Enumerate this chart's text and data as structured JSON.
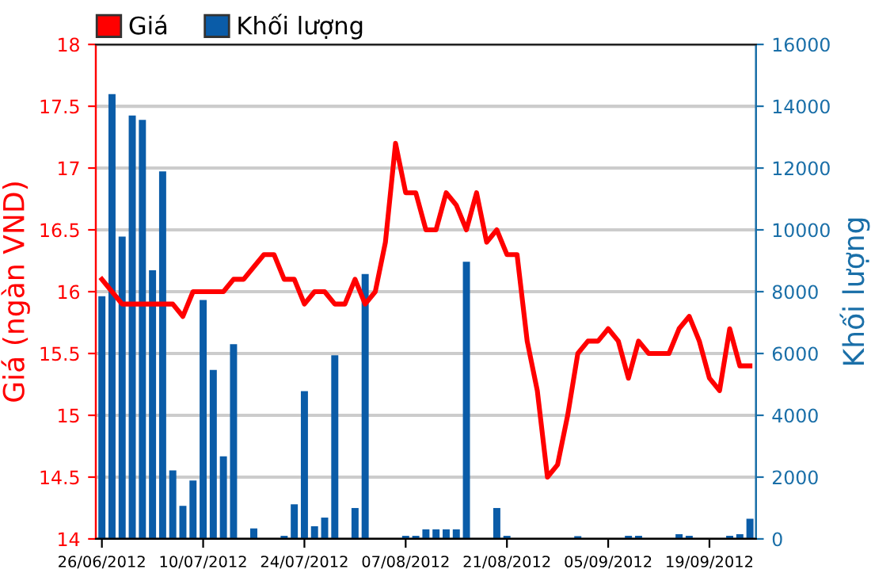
{
  "chart_data": {
    "type": "bar",
    "ylabel": "Giá (ngàn VND)",
    "y2label": "Khối lượng",
    "categories": [
      "26/06/2012",
      null,
      null,
      null,
      null,
      null,
      null,
      null,
      null,
      null,
      "10/07/2012",
      null,
      null,
      null,
      null,
      null,
      null,
      null,
      null,
      null,
      "24/07/2012",
      null,
      null,
      null,
      null,
      null,
      null,
      null,
      null,
      null,
      "07/08/2012",
      null,
      null,
      null,
      null,
      null,
      null,
      null,
      null,
      null,
      "21/08/2012",
      null,
      null,
      null,
      null,
      null,
      null,
      null,
      null,
      null,
      "05/09/2012",
      null,
      null,
      null,
      null,
      null,
      null,
      null,
      null,
      null,
      "19/09/2012",
      null,
      null,
      null,
      null
    ],
    "series": [
      {
        "name": "Giá",
        "type": "line",
        "axis": "y",
        "color": "#ff0000",
        "values": [
          16.1,
          16.0,
          15.9,
          15.9,
          15.9,
          15.9,
          15.9,
          15.9,
          15.8,
          16.0,
          16.0,
          16.0,
          16.0,
          16.1,
          16.1,
          16.2,
          16.3,
          16.3,
          16.1,
          16.1,
          15.9,
          16.0,
          16.0,
          15.9,
          15.9,
          16.1,
          15.9,
          16.0,
          16.4,
          17.2,
          16.8,
          16.8,
          16.5,
          16.5,
          16.8,
          16.7,
          16.5,
          16.8,
          16.4,
          16.5,
          16.3,
          16.3,
          15.6,
          15.2,
          14.5,
          14.6,
          15.0,
          15.5,
          15.6,
          15.6,
          15.7,
          15.6,
          15.3,
          15.6,
          15.5,
          15.5,
          15.5,
          15.7,
          15.8,
          15.6,
          15.3,
          15.2,
          15.7,
          15.4,
          15.4
        ]
      },
      {
        "name": "Khối lượng",
        "axis": "y2",
        "color": "#0a5ca8",
        "values": [
          7850,
          14390,
          9780,
          13700,
          13560,
          8690,
          11890,
          2220,
          1070,
          1890,
          7730,
          5470,
          2670,
          6300,
          0,
          340,
          0,
          0,
          100,
          1120,
          4780,
          410,
          690,
          5940,
          0,
          1000,
          8570,
          0,
          0,
          0,
          100,
          100,
          310,
          310,
          310,
          310,
          8970,
          0,
          0,
          1000,
          100,
          0,
          0,
          0,
          0,
          0,
          0,
          90,
          0,
          0,
          0,
          0,
          100,
          100,
          0,
          0,
          0,
          150,
          100,
          0,
          0,
          0,
          100,
          150,
          650
        ]
      }
    ],
    "ylim": [
      14,
      18
    ],
    "yticks": [
      14,
      14.5,
      15,
      15.5,
      16,
      16.5,
      17,
      17.5,
      18
    ],
    "y2lim": [
      0,
      16000
    ],
    "y2ticks": [
      0,
      2000,
      4000,
      6000,
      8000,
      10000,
      12000,
      14000,
      16000
    ],
    "grid": "y",
    "legend": "top left",
    "marker": "none",
    "line_style": "solid"
  }
}
